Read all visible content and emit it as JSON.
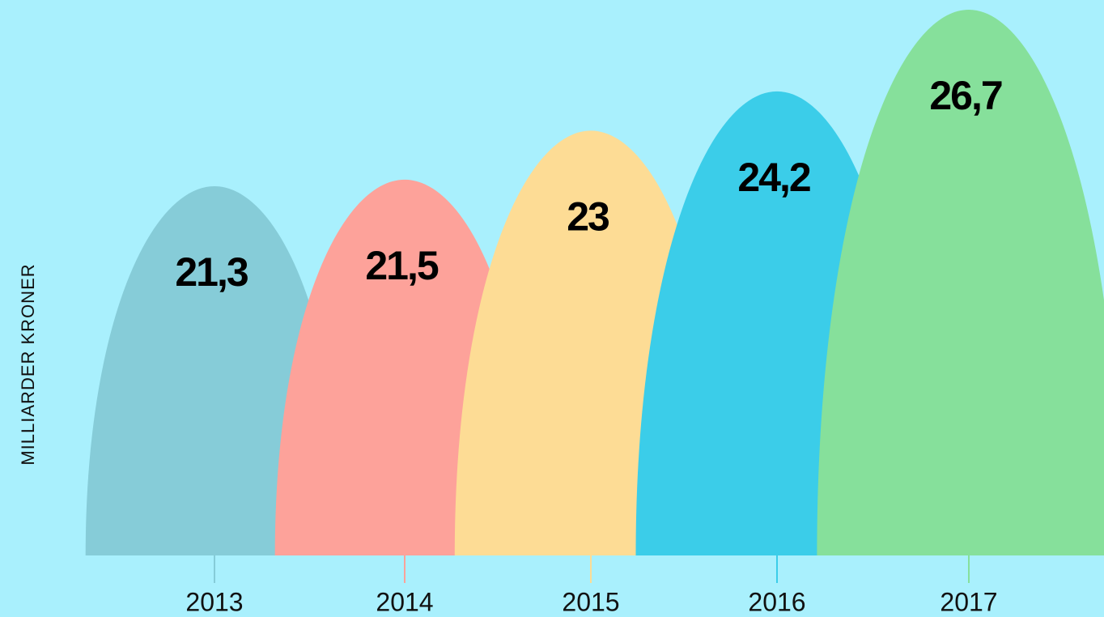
{
  "chart_data": {
    "type": "arch",
    "ylabel": "MILLIARDER KRONER",
    "categories": [
      "2013",
      "2014",
      "2015",
      "2016",
      "2017"
    ],
    "values": [
      21.3,
      21.5,
      23,
      24.2,
      26.7
    ],
    "value_labels": [
      "21,3",
      "21,5",
      "23",
      "24,2",
      "26,7"
    ],
    "colors": [
      "#86ccd8",
      "#fda29a",
      "#fddc95",
      "#3bcde9",
      "#86e09b"
    ],
    "ylim": [
      10,
      26.7
    ]
  }
}
